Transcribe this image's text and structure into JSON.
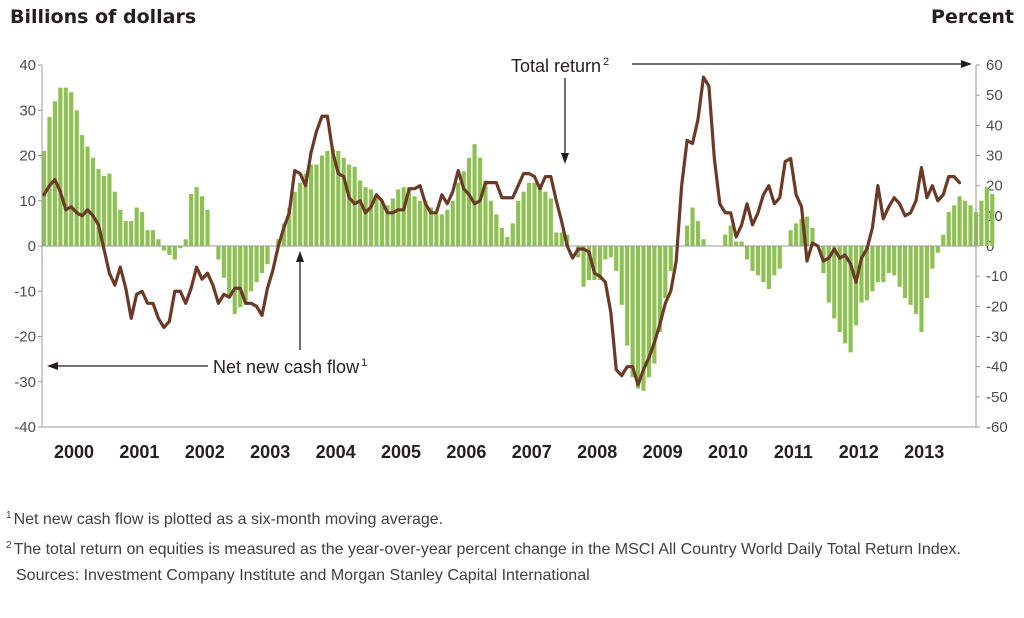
{
  "left_axis_title": "Billions of dollars",
  "right_axis_title": "Percent",
  "annotations": {
    "total_return": "Total return",
    "total_return_sup": "2",
    "net_new_cash_flow": "Net new cash flow",
    "net_new_cash_flow_sup": "1"
  },
  "footnotes": [
    {
      "marker": "1",
      "text": "Net new cash flow is plotted as a six-month moving average."
    },
    {
      "marker": "2",
      "text": "The total return on equities is measured as the year-over-year percent change in the MSCI All Country World Daily Total Return Index."
    }
  ],
  "source": "Sources: Investment Company Institute and Morgan Stanley Capital International",
  "colors": {
    "bars": "#8dc152",
    "line": "#6b3a26",
    "axis": "#999999",
    "text": "#231f20"
  },
  "chart_data": {
    "type": "bar+line",
    "x_start_year": 2000,
    "x_end_year": 2013,
    "months_per_point": 1,
    "x_tick_labels": [
      "2000",
      "2001",
      "2002",
      "2003",
      "2004",
      "2005",
      "2006",
      "2007",
      "2008",
      "2009",
      "2010",
      "2011",
      "2012",
      "2013"
    ],
    "left_axis": {
      "label": "Billions of dollars",
      "min": -40,
      "max": 40,
      "ticks": [
        -40,
        -30,
        -20,
        -10,
        0,
        10,
        20,
        30,
        40
      ]
    },
    "right_axis": {
      "label": "Percent",
      "min": -60,
      "max": 60,
      "ticks": [
        -60,
        -50,
        -40,
        -30,
        -20,
        -10,
        0,
        10,
        20,
        30,
        40,
        50,
        60
      ]
    },
    "series": [
      {
        "name": "Net new cash flow",
        "type": "bar",
        "axis": "left",
        "values": [
          21,
          28.5,
          32,
          35,
          35,
          34,
          30,
          24.5,
          22,
          19.5,
          17,
          15.5,
          16,
          12,
          8,
          5.5,
          5.5,
          8.5,
          7.5,
          3.5,
          3.5,
          1.5,
          -1,
          -2,
          -3,
          -0.5,
          1.5,
          11.5,
          13,
          11,
          8,
          0,
          -3,
          -7,
          -11,
          -15,
          -13.5,
          -13,
          -10,
          -8,
          -6,
          -4,
          0,
          1.5,
          5,
          8.5,
          12,
          14,
          16,
          18,
          18,
          20,
          21,
          21.5,
          21,
          19.5,
          18,
          17.5,
          14.5,
          13,
          12.5,
          11,
          10,
          9,
          10.5,
          12.5,
          13,
          13,
          11,
          10,
          10,
          8.5,
          7,
          7,
          8,
          10,
          14,
          16.5,
          19.5,
          22.5,
          19.5,
          14.5,
          10,
          7,
          4,
          2,
          5,
          10,
          12,
          14,
          14,
          13.5,
          12,
          10.5,
          3,
          3,
          2.5,
          0,
          -2.5,
          -9,
          -7.5,
          -7.5,
          -7.5,
          -3,
          -2.5,
          -5.5,
          -13,
          -22,
          -29,
          -31.5,
          -32,
          -29,
          -26,
          -19,
          -11.5,
          -5.5,
          0,
          0,
          4.5,
          8.5,
          5.5,
          1.5,
          0,
          0,
          0,
          2.5,
          4.5,
          1,
          1,
          -3,
          -5.5,
          -6.5,
          -8,
          -9.5,
          -6.5,
          -5,
          0,
          3.5,
          5,
          6,
          6.5,
          4,
          0,
          -6,
          -12.5,
          -16,
          -19,
          -21.5,
          -23.5,
          -17.5,
          -12.5,
          -12,
          -10,
          -8,
          -8,
          -6,
          -6.5,
          -9,
          -11.5,
          -13,
          -15,
          -19,
          -11.5,
          -5,
          -1.5,
          2.5,
          7.5,
          9,
          11,
          10,
          9,
          7.5,
          10,
          13,
          11.5
        ]
      },
      {
        "name": "Total return",
        "type": "line",
        "axis": "right",
        "values": [
          17,
          20,
          22,
          18,
          12,
          13,
          11,
          10,
          12,
          10,
          7,
          -1,
          -9,
          -13,
          -7,
          -14,
          -24,
          -16,
          -15,
          -19,
          -19,
          -24,
          -27,
          -25,
          -15,
          -15,
          -19,
          -14,
          -7,
          -11,
          -9,
          -13,
          -19,
          -16,
          -17,
          -14,
          -14,
          -19,
          -19,
          -20,
          -23,
          -14,
          -8,
          0,
          6,
          11,
          25,
          24,
          20,
          31,
          38,
          43,
          43,
          31,
          24,
          23,
          16,
          14,
          15,
          11,
          13,
          17,
          15,
          11,
          11,
          12,
          12,
          19,
          19,
          20,
          14,
          11,
          11,
          17,
          14,
          18,
          25,
          19,
          17,
          14,
          15,
          21,
          21,
          21,
          16,
          16,
          16,
          20,
          24,
          24,
          23,
          19,
          23,
          23,
          15,
          8,
          0,
          -4,
          -1,
          -1,
          -2,
          -9,
          -10,
          -12,
          -22,
          -41,
          -43,
          -40,
          -40,
          -46,
          -41,
          -37,
          -32,
          -26,
          -19,
          -15,
          -5,
          20,
          35,
          34,
          42,
          56,
          53,
          29,
          14,
          11,
          11,
          3,
          7,
          14,
          7,
          11,
          17,
          20,
          14,
          16,
          28,
          29,
          17,
          13,
          -5,
          1,
          0,
          -5,
          -4,
          -1,
          -4,
          -3,
          -6,
          -12,
          -4,
          -1,
          6,
          20,
          9,
          13,
          16,
          14,
          10,
          11,
          15,
          26,
          16,
          20,
          15,
          17,
          23,
          23,
          21
        ]
      }
    ]
  }
}
